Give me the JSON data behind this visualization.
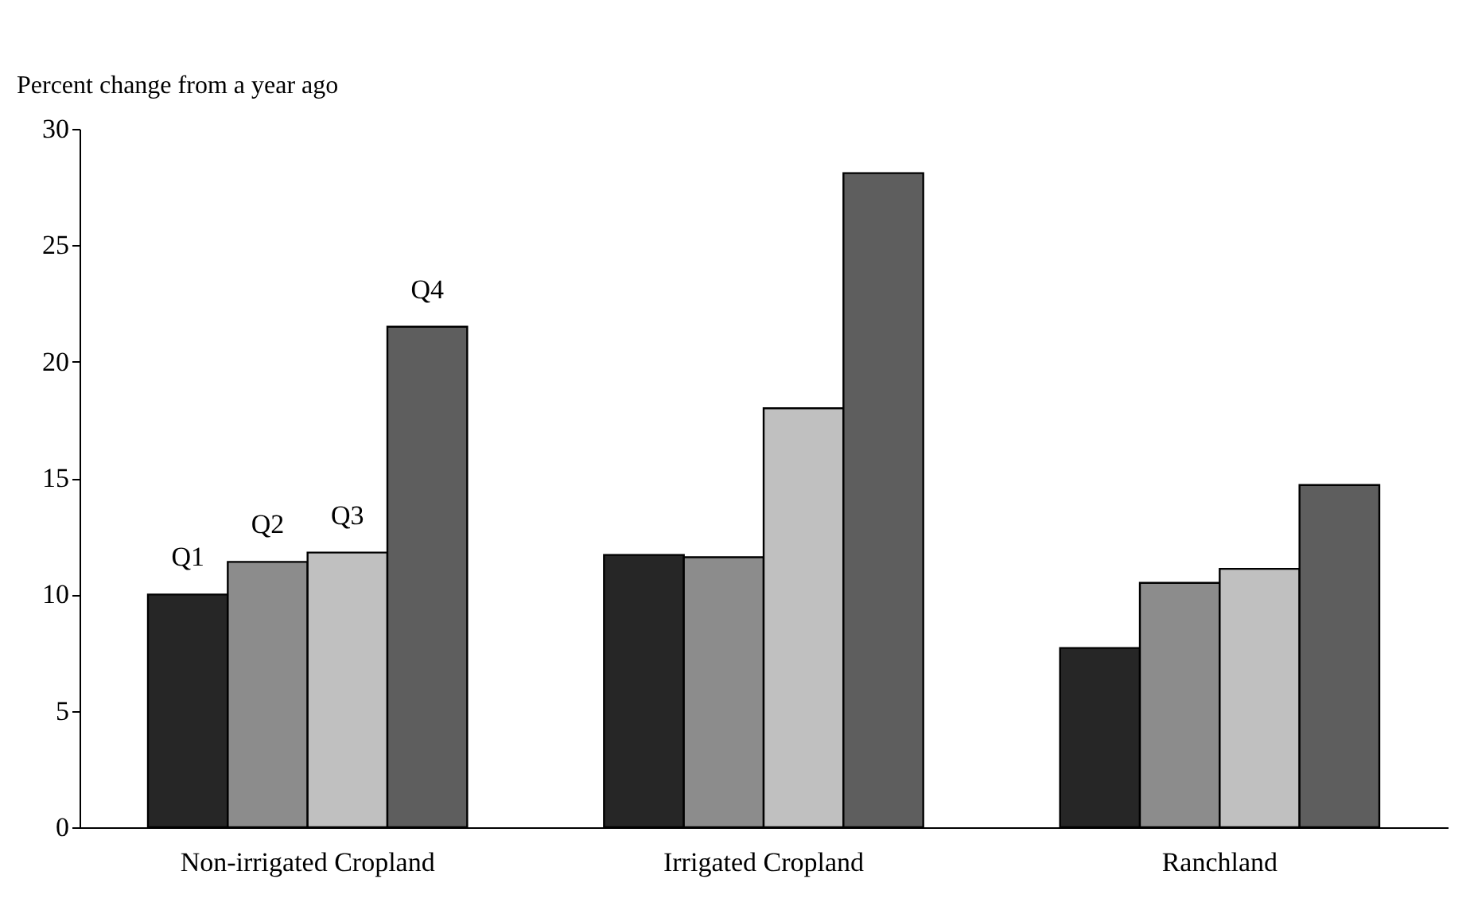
{
  "chart_data": {
    "type": "bar",
    "ylabel": "Percent change from a year ago",
    "categories": [
      "Non-irrigated Cropland",
      "Irrigated Cropland",
      "Ranchland"
    ],
    "series": [
      {
        "name": "Q1",
        "color": "#262626",
        "values": [
          10.0,
          11.7,
          7.7
        ]
      },
      {
        "name": "Q2",
        "color": "#8c8c8c",
        "values": [
          11.4,
          11.6,
          10.5
        ]
      },
      {
        "name": "Q3",
        "color": "#c0c0c0",
        "values": [
          11.8,
          18.0,
          11.1
        ]
      },
      {
        "name": "Q4",
        "color": "#5e5e5e",
        "values": [
          21.5,
          28.1,
          14.7
        ]
      }
    ],
    "ylim": [
      0,
      30
    ],
    "yticks": [
      0,
      5,
      10,
      15,
      20,
      25,
      30
    ],
    "grid": false,
    "legend": false
  }
}
